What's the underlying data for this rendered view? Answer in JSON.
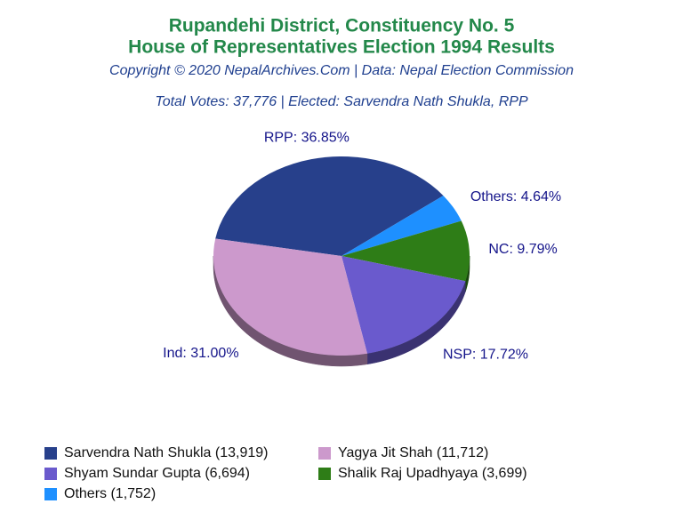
{
  "chart_data": {
    "type": "pie",
    "title": [
      "Rupandehi District, Constituency No. 5",
      "House of Representatives Election 1994 Results"
    ],
    "subtitle": "Copyright © 2020 NepalArchives.Com | Data: Nepal Election Commission",
    "caption": "Total Votes: 37,776 | Elected: Sarvendra Nath Shukla, RPP",
    "values": [
      36.85,
      4.64,
      9.79,
      17.72,
      31.0
    ],
    "value_labels": [
      "RPP: 36.85%",
      "Others: 4.64%",
      "NC: 9.79%",
      "NSP: 17.72%",
      "Ind: 31.00%"
    ],
    "colors": [
      "#27408b",
      "#1e90ff",
      "#2e7d17",
      "#6a5acd",
      "#cc99cc"
    ],
    "legend": [
      {
        "label": "Sarvendra Nath Shukla (13,919)",
        "color": "#27408b"
      },
      {
        "label": "Yagya Jit Shah (11,712)",
        "color": "#cc99cc"
      },
      {
        "label": "Shyam Sundar Gupta (6,694)",
        "color": "#6a5acd"
      },
      {
        "label": "Shalik Raj Upadhyaya (3,699)",
        "color": "#2e7d17"
      },
      {
        "label": "Others (1,752)",
        "color": "#1e90ff"
      }
    ]
  }
}
